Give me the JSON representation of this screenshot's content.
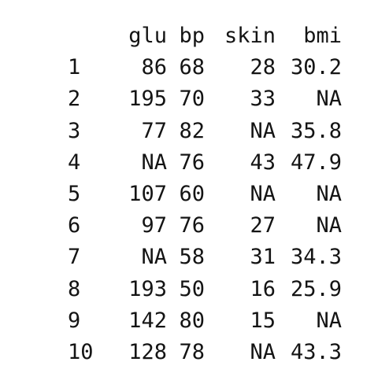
{
  "dataframe": {
    "columns": [
      "glu",
      "bp",
      "skin",
      "bmi"
    ],
    "rows": [
      {
        "index": "1",
        "glu": "86",
        "bp": "68",
        "skin": "28",
        "bmi": "30.2"
      },
      {
        "index": "2",
        "glu": "195",
        "bp": "70",
        "skin": "33",
        "bmi": "NA"
      },
      {
        "index": "3",
        "glu": "77",
        "bp": "82",
        "skin": "NA",
        "bmi": "35.8"
      },
      {
        "index": "4",
        "glu": "NA",
        "bp": "76",
        "skin": "43",
        "bmi": "47.9"
      },
      {
        "index": "5",
        "glu": "107",
        "bp": "60",
        "skin": "NA",
        "bmi": "NA"
      },
      {
        "index": "6",
        "glu": "97",
        "bp": "76",
        "skin": "27",
        "bmi": "NA"
      },
      {
        "index": "7",
        "glu": "NA",
        "bp": "58",
        "skin": "31",
        "bmi": "34.3"
      },
      {
        "index": "8",
        "glu": "193",
        "bp": "50",
        "skin": "16",
        "bmi": "25.9"
      },
      {
        "index": "9",
        "glu": "142",
        "bp": "80",
        "skin": "15",
        "bmi": "NA"
      },
      {
        "index": "10",
        "glu": "128",
        "bp": "78",
        "skin": "NA",
        "bmi": "43.3"
      }
    ]
  }
}
